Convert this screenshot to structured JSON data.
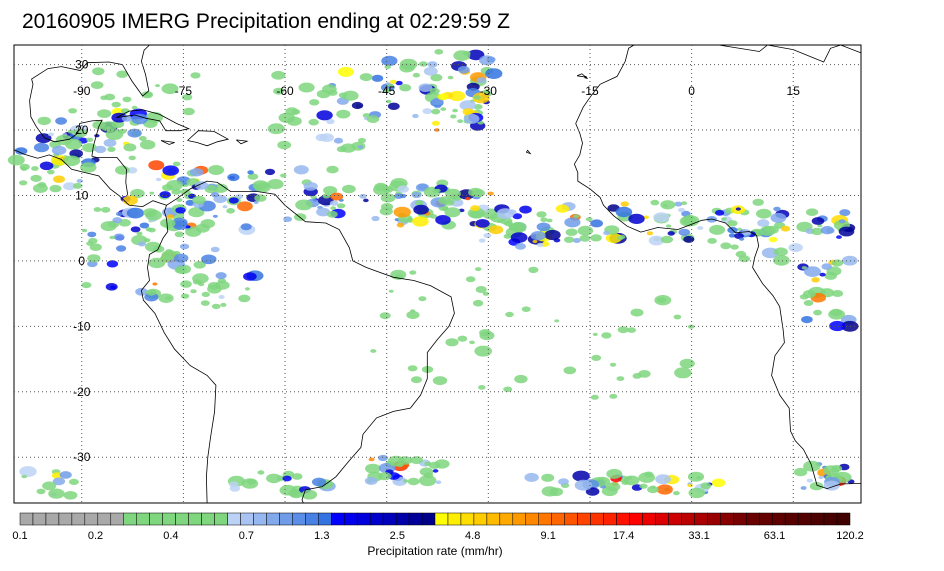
{
  "title": "20160905 IMERG Precipitation ending at 02:29:59 Z",
  "map": {
    "lon_min": -100,
    "lon_max": 25,
    "lat_min": -37,
    "lat_max": 33,
    "lon_labels": [
      "-90",
      "-75",
      "-60",
      "-45",
      "-30",
      "-15",
      "0",
      "15"
    ],
    "lat_labels": [
      "30",
      "20",
      "10",
      "0",
      "-10",
      "-20",
      "-30"
    ],
    "colors": {
      "land_outline": "#000000",
      "gridline": "#555555",
      "frame": "#000000"
    }
  },
  "colorbar": {
    "title": "Precipitation rate (mm/hr)",
    "tick_labels": [
      "0.1",
      "0.2",
      "0.4",
      "0.7",
      "1.3",
      "2.5",
      "4.8",
      "9.1",
      "17.4",
      "33.1",
      "63.1",
      "120.2"
    ],
    "colors": [
      "#a9a9a9",
      "#a9a9a9",
      "#a9a9a9",
      "#a9a9a9",
      "#a9a9a9",
      "#a9a9a9",
      "#a9a9a9",
      "#a9a9a9",
      "#7fd67f",
      "#7fd67f",
      "#7fd67f",
      "#7fd67f",
      "#7fd67f",
      "#7fd67f",
      "#7fd67f",
      "#7fd67f",
      "#bcd2f5",
      "#a9c4f2",
      "#96b7ef",
      "#82a9ec",
      "#6f9ce9",
      "#5b8ee6",
      "#4881e3",
      "#3473e0",
      "#0000ff",
      "#0000ee",
      "#0000dd",
      "#0000cc",
      "#0000bb",
      "#0000aa",
      "#000099",
      "#00008a",
      "#ffff00",
      "#ffee00",
      "#ffdd00",
      "#ffcc00",
      "#ffbb00",
      "#ffaa00",
      "#ff9900",
      "#ff8800",
      "#ff7700",
      "#ff6600",
      "#ff5500",
      "#ff4400",
      "#ff3300",
      "#ff2200",
      "#ff1100",
      "#ff0000",
      "#ee0000",
      "#dd0000",
      "#cc0000",
      "#bb0000",
      "#aa0000",
      "#990000",
      "#880000",
      "#770000",
      "#6a0000",
      "#640000",
      "#5e0000",
      "#580000",
      "#520000",
      "#4c0000",
      "#460000",
      "#400000"
    ]
  }
}
